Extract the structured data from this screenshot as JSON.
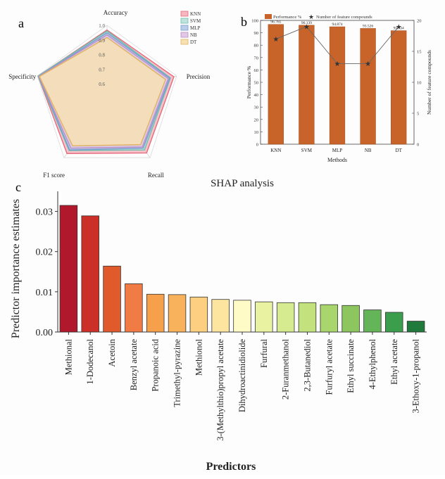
{
  "panel_labels": {
    "a": "a",
    "b": "b",
    "c": "c"
  },
  "chart_data": [
    {
      "id": "a",
      "type": "radar",
      "axes": [
        "Accuracy",
        "Precision",
        "Recall",
        "F1 score",
        "Specificity"
      ],
      "radial_range": [
        0.5,
        1.0
      ],
      "radial_ticks": [
        "1.0",
        "0.9",
        "0.8",
        "0.7",
        "0.6"
      ],
      "grid": true,
      "legend_position": "top-right",
      "series": [
        {
          "name": "KNN",
          "color": "#f5b7c0",
          "edge": "#e56b7c",
          "values": [
            0.968,
            0.98,
            0.96,
            0.965,
            0.995
          ]
        },
        {
          "name": "SVM",
          "color": "#bfe3dc",
          "edge": "#6cbfae",
          "values": [
            0.961,
            0.955,
            0.935,
            0.94,
            0.995
          ]
        },
        {
          "name": "MLP",
          "color": "#b9cde8",
          "edge": "#7a9bd0",
          "values": [
            0.949,
            0.95,
            0.92,
            0.935,
            0.99
          ]
        },
        {
          "name": "NB",
          "color": "#e2c8e6",
          "edge": "#bb8fc6",
          "values": [
            0.935,
            0.94,
            0.91,
            0.92,
            0.99
          ]
        },
        {
          "name": "DT",
          "color": "#f7e0b2",
          "edge": "#e0b461",
          "values": [
            0.917,
            0.92,
            0.89,
            0.9,
            0.985
          ]
        }
      ]
    },
    {
      "id": "b",
      "type": "bar",
      "categories": [
        "KNN",
        "SVM",
        "MLP",
        "NB",
        "DT"
      ],
      "series": [
        {
          "name": "Performance %",
          "axis": "left",
          "color": "#c8642a",
          "values": [
            96.765,
            96.139,
            94.874,
            93.526,
            91.734
          ]
        },
        {
          "name": "Number of feature compounds",
          "type": "line",
          "axis": "right",
          "marker": "star",
          "color": "#444444",
          "values": [
            17,
            19,
            13,
            13,
            19
          ]
        }
      ],
      "data_labels": [
        "96.765",
        "96.139",
        "94.874",
        "93.526",
        "91.734"
      ],
      "xlabel": "Methods",
      "ylabel": "Performance %",
      "y2label": "Number of feature compounds",
      "ylim": [
        0,
        100
      ],
      "y2lim": [
        0,
        20
      ],
      "yticks": [
        "0",
        "10",
        "20",
        "30",
        "40",
        "50",
        "60",
        "70",
        "80",
        "90",
        "100"
      ],
      "y2ticks": [
        "0",
        "5",
        "10",
        "15",
        "20"
      ],
      "legend_position": "top"
    },
    {
      "id": "c",
      "type": "bar",
      "title": "SHAP analysis",
      "xlabel": "Predictors",
      "ylabel": "Predictor importance estimates",
      "ylim": [
        0,
        0.035
      ],
      "yticks": [
        "0.00",
        "0.01",
        "0.02",
        "0.03"
      ],
      "categories": [
        "Methional",
        "1-Dodecanol",
        "Acetoin",
        "Benzyl acetate",
        "Propanoic acid",
        "Trimethyl-pyrazine",
        "Methionol",
        "3-(Methylthio)propyl acetate",
        "Dihydroactinidiolide",
        "Furfural",
        "2-Furanmethanol",
        "2,3-Butanediol",
        "Furfuryl acetate",
        "Ethyl succinate",
        "4-Ethylphenol",
        "Ethyl acetate",
        "3-Ethoxy-1-propanol"
      ],
      "values": [
        0.0315,
        0.0289,
        0.0164,
        0.012,
        0.0094,
        0.0093,
        0.0087,
        0.0081,
        0.0079,
        0.0075,
        0.0073,
        0.0073,
        0.0068,
        0.0066,
        0.0055,
        0.0049,
        0.0027
      ],
      "colors": [
        "#b2182b",
        "#cc2f27",
        "#e05a2b",
        "#f07b45",
        "#f7a04c",
        "#f9b25c",
        "#fcd080",
        "#fde5a0",
        "#fefbc6",
        "#e8f2a0",
        "#d6ea90",
        "#c3e27e",
        "#a8d56c",
        "#8dc65e",
        "#63b558",
        "#3b9e4c",
        "#1f7a3c"
      ]
    }
  ]
}
